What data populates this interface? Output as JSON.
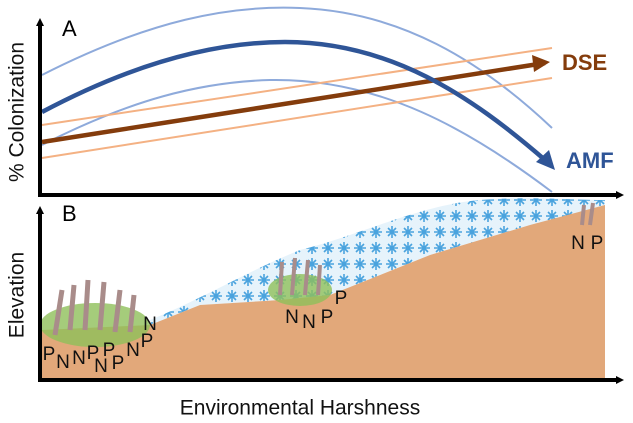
{
  "panel_a": {
    "label": "A",
    "y_axis_label": "% Colonization",
    "lines": [
      "DSE",
      "AMF"
    ]
  },
  "panel_b": {
    "label": "B",
    "y_axis_label": "Elevation",
    "plant_labels": [
      "P",
      "N",
      "N",
      "P",
      "P",
      "N",
      "P",
      "N",
      "P",
      "N",
      "N",
      "N",
      "P",
      "P",
      "N",
      "P"
    ]
  },
  "x_axis_label": "Environmental Harshness"
}
